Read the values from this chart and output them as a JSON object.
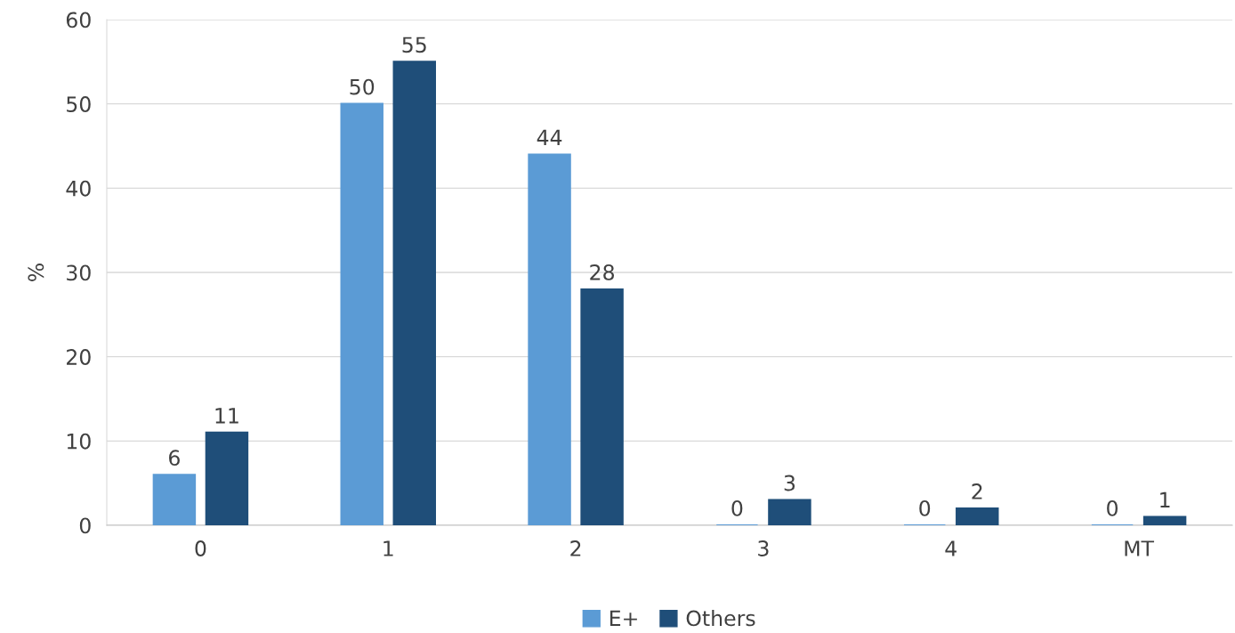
{
  "chart_data": {
    "type": "bar",
    "ylabel": "%",
    "categories": [
      "0",
      "1",
      "2",
      "3",
      "4",
      "MT"
    ],
    "series": [
      {
        "name": "E+",
        "color": "#5b9bd5",
        "values": [
          6,
          50,
          44,
          0,
          0,
          0
        ]
      },
      {
        "name": "Others",
        "color": "#1f4e79",
        "values": [
          11,
          55,
          28,
          3,
          2,
          1
        ]
      }
    ],
    "ylim": [
      0,
      60
    ],
    "yticks": [
      0,
      10,
      20,
      30,
      40,
      50,
      60
    ],
    "grid": "y",
    "legend": "bottom",
    "data_labels": true
  }
}
